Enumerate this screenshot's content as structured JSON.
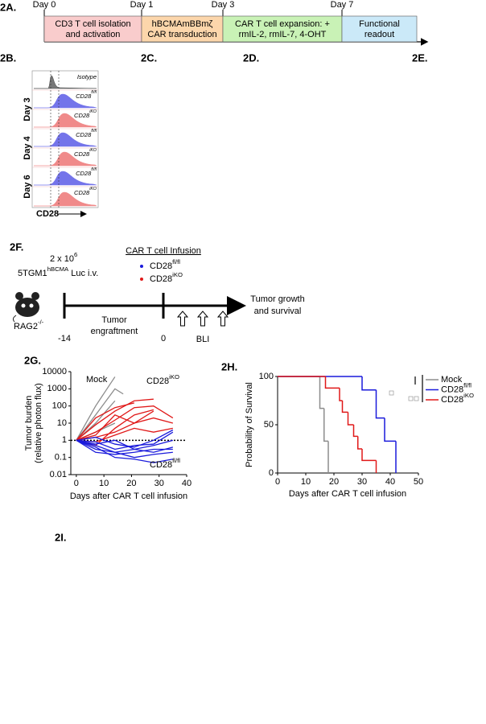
{
  "panels": [
    "2A.",
    "2B.",
    "2C.",
    "2D.",
    "2E.",
    "2F.",
    "2G.",
    "2H.",
    "2I."
  ],
  "timeline": {
    "days": [
      "Day 0",
      "Day 1",
      "Day 3",
      "Day 7"
    ],
    "steps": [
      {
        "lines": [
          "CD3 T cell isolation",
          "and activation"
        ],
        "color": "#f9cccc"
      },
      {
        "lines": [
          "hBCMAmBBmζ",
          "CAR transduction"
        ],
        "color": "#fcd6ab"
      },
      {
        "lines": [
          "CAR T cell expansion: +",
          "rmIL-2, rmIL-7, 4-OHT"
        ],
        "color": "#c9f2b6"
      },
      {
        "lines": [
          "Functional",
          "readout"
        ],
        "color": "#cbe9f8"
      }
    ]
  },
  "histograms": {
    "rows": [
      {
        "base": "Isotype",
        "sup": ""
      },
      {
        "base": "CD28",
        "sup": "fl/fl"
      },
      {
        "base": "CD28",
        "sup": "iKO"
      },
      {
        "base": "CD28",
        "sup": "fl/fl"
      },
      {
        "base": "CD28",
        "sup": "iKO"
      },
      {
        "base": "CD28",
        "sup": "fl/fl"
      },
      {
        "base": "CD28",
        "sup": "iKO"
      }
    ],
    "days": [
      "Day 3",
      "Day 4",
      "Day 6"
    ],
    "axis_label": "CD28"
  },
  "schema": {
    "dose": "2 x 10",
    "dose_sup": "6",
    "cell_line": "5TGM1",
    "cell_line_sup": "hBCMA",
    "cell_line_end": " Luc i.v.",
    "infusion_title": "CAR T cell Infusion",
    "groups": [
      {
        "base": "CD28",
        "sup": "fl/fl",
        "color": "#1a1adb"
      },
      {
        "base": "CD28",
        "sup": "iKO",
        "color": "#e01818"
      }
    ],
    "host": "RAG2",
    "host_sup": "-/-",
    "timepoints": [
      "-14",
      "0"
    ],
    "phase": [
      "Tumor",
      "engraftment"
    ],
    "imaging": "BLI",
    "outcome": [
      "Tumor growth",
      "and survival"
    ]
  },
  "chart_data": [
    {
      "type": "line",
      "log_y": true,
      "xlim": [
        -2,
        40
      ],
      "xticks": [
        0,
        10,
        20,
        30,
        40
      ],
      "ylim": [
        0.01,
        10000
      ],
      "yticks": [
        10000,
        1000,
        100,
        10,
        1,
        0.1,
        0.01
      ],
      "ylabel": [
        "Tumor burden",
        "(relative photon flux)"
      ],
      "xlabel": "Days after CAR T cell infusion",
      "reference_y": 1,
      "groups": [
        {
          "label": "Mock",
          "label_sup": "",
          "color": "#8c8c8c",
          "mice": [
            {
              "x": [
                0,
                7,
                14
              ],
              "values": [
                1,
                100,
                5000
              ]
            },
            {
              "x": [
                0,
                7,
                14,
                17
              ],
              "values": [
                1,
                30,
                1000,
                500
              ]
            },
            {
              "x": [
                0,
                7,
                14
              ],
              "values": [
                1,
                10,
                200
              ]
            },
            {
              "x": [
                0,
                7,
                14
              ],
              "values": [
                1,
                3,
                10
              ]
            }
          ]
        },
        {
          "label": "CD28",
          "label_sup": "iKO",
          "color": "#e01818",
          "mice": [
            {
              "x": [
                0,
                7,
                14,
                21,
                28
              ],
              "values": [
                1,
                8,
                50,
                200,
                250
              ]
            },
            {
              "x": [
                0,
                7,
                14,
                21,
                28,
                35
              ],
              "values": [
                1,
                3,
                15,
                80,
                100,
                20
              ]
            },
            {
              "x": [
                0,
                7,
                14,
                21,
                28
              ],
              "values": [
                1,
                2,
                30,
                10,
                50
              ]
            },
            {
              "x": [
                0,
                7,
                14,
                21
              ],
              "values": [
                1,
                20,
                80,
                150
              ]
            },
            {
              "x": [
                0,
                7,
                14,
                21,
                28
              ],
              "values": [
                1,
                0.5,
                5,
                30,
                60
              ]
            },
            {
              "x": [
                0,
                7,
                14,
                21,
                28,
                35
              ],
              "values": [
                1,
                1.5,
                3,
                10,
                20,
                10
              ]
            },
            {
              "x": [
                0,
                7,
                14,
                21,
                28,
                35
              ],
              "values": [
                1,
                0.8,
                2,
                5,
                3,
                5
              ]
            }
          ]
        },
        {
          "label": "CD28",
          "label_sup": "fl/fl",
          "color": "#1a1adb",
          "mice": [
            {
              "x": [
                0,
                7,
                14,
                21,
                28,
                35
              ],
              "values": [
                1,
                0.3,
                0.2,
                0.3,
                0.2,
                0.4
              ]
            },
            {
              "x": [
                0,
                7,
                14,
                21,
                28,
                35
              ],
              "values": [
                1,
                0.5,
                0.2,
                0.1,
                0.15,
                0.2
              ]
            },
            {
              "x": [
                0,
                7,
                14,
                21,
                28,
                35
              ],
              "values": [
                1,
                0.2,
                0.15,
                0.2,
                0.3,
                0.3
              ]
            },
            {
              "x": [
                0,
                7,
                14,
                21,
                28,
                35
              ],
              "values": [
                1,
                0.8,
                0.3,
                0.5,
                0.6,
                3
              ]
            },
            {
              "x": [
                0,
                7,
                14,
                21,
                28,
                35
              ],
              "values": [
                1,
                1.5,
                0.6,
                0.4,
                1,
                4
              ]
            },
            {
              "x": [
                0,
                7,
                14,
                21,
                28,
                35
              ],
              "values": [
                1,
                0.6,
                1,
                0.3,
                0.5,
                1
              ]
            },
            {
              "x": [
                0,
                7,
                14,
                21,
                28,
                35
              ],
              "values": [
                1,
                0.4,
                0.1,
                0.08,
                0.05,
                0.08
              ]
            }
          ]
        }
      ]
    },
    {
      "type": "step",
      "xlim": [
        0,
        50
      ],
      "xticks": [
        0,
        10,
        20,
        30,
        40,
        50
      ],
      "ylim": [
        0,
        100
      ],
      "yticks": [
        0,
        50,
        100
      ],
      "ylabel": "Probability of Survival",
      "xlabel": "Days after CAR T cell infusion",
      "series": [
        {
          "name": "Mock",
          "name_sup": "",
          "color": "#8c8c8c",
          "x": [
            0,
            15,
            16.5,
            18
          ],
          "values": [
            100,
            67,
            33,
            0
          ]
        },
        {
          "name": "CD28",
          "name_sup": "fl/fl",
          "color": "#1a1adb",
          "x": [
            0,
            30,
            35,
            38,
            42
          ],
          "values": [
            100,
            86,
            57,
            33,
            0
          ]
        },
        {
          "name": "CD28",
          "name_sup": "iKO",
          "color": "#e01818",
          "x": [
            0,
            17,
            22,
            23,
            25,
            27,
            28.5,
            30,
            35
          ],
          "values": [
            100,
            88,
            75,
            63,
            50,
            38,
            25,
            13,
            0
          ]
        }
      ]
    }
  ]
}
